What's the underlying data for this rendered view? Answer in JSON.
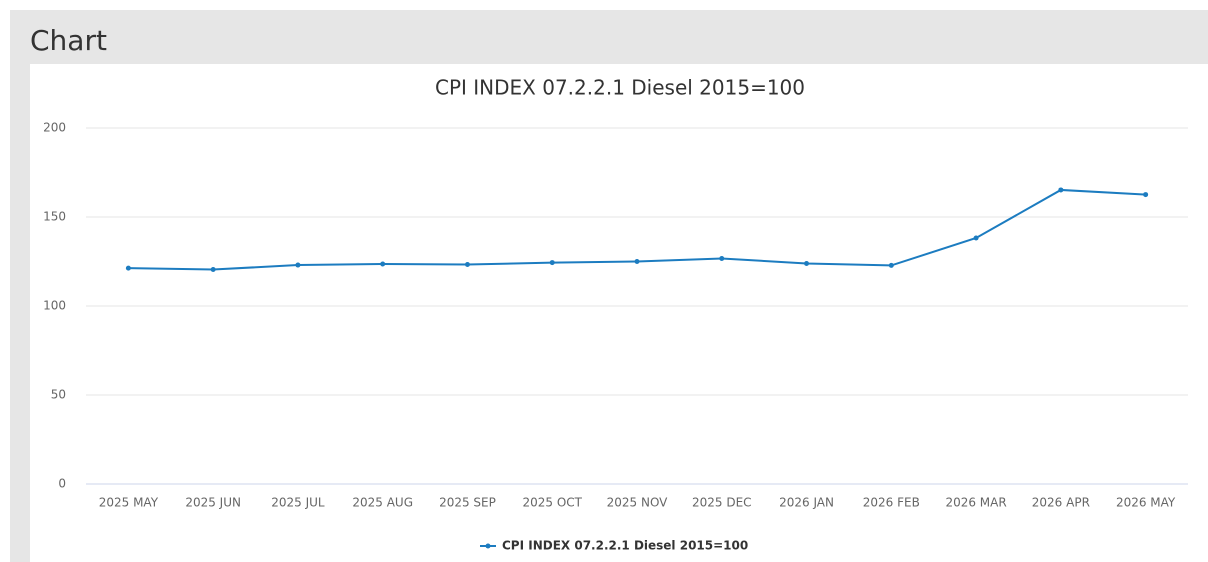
{
  "panel_title": "Chart",
  "chart_data": {
    "type": "line",
    "title": "CPI INDEX 07.2.2.1 Diesel 2015=100",
    "categories": [
      "2025 MAY",
      "2025 JUN",
      "2025 JUL",
      "2025 AUG",
      "2025 SEP",
      "2025 OCT",
      "2025 NOV",
      "2025 DEC",
      "2026 JAN",
      "2026 FEB",
      "2026 MAR",
      "2026 APR",
      "2026 MAY"
    ],
    "series": [
      {
        "name": "CPI INDEX 07.2.2.1 Diesel 2015=100",
        "color": "#1c7cc0",
        "values": [
          121.3,
          120.5,
          123,
          123.6,
          123.3,
          124.4,
          125,
          126.7,
          123.9,
          122.8,
          138.2,
          165.2,
          162.6
        ]
      }
    ],
    "ylim": [
      0,
      200
    ],
    "yticks": [
      0,
      50,
      100,
      150,
      200
    ],
    "grid": true,
    "legend": "bottom"
  }
}
